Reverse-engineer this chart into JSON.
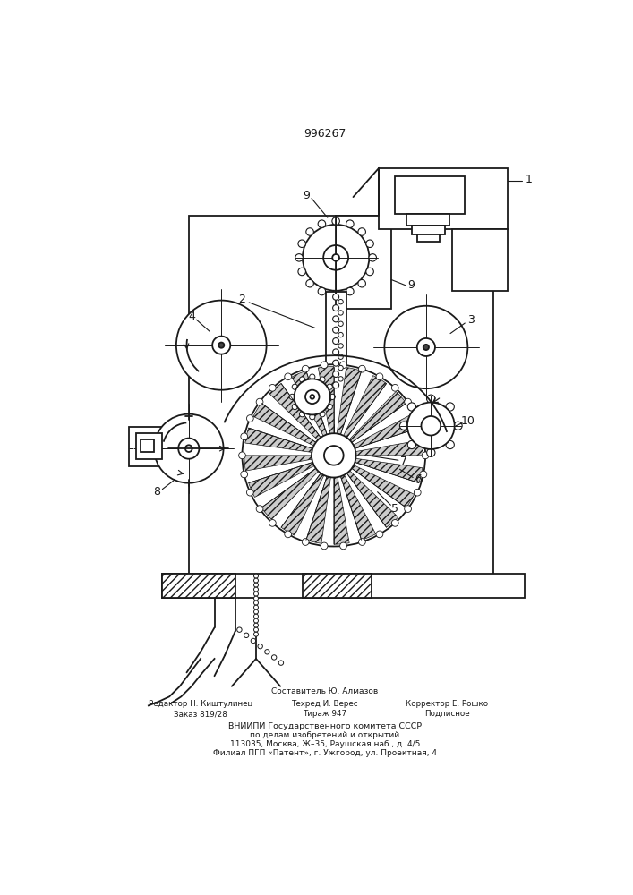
{
  "title": "996267",
  "line_color": "#1a1a1a",
  "footer_lines": [
    "Составитель Ю. Алмазов",
    "Редактор Н. Киштулинец    Техред И. Верес         Корректор Е. Рошко",
    "Заказ 819/28                     Тираж 947                  Подписное",
    "ВНИИПИ Государственного комитета СССР",
    "по делам изобретений и открытий",
    "113035, Москва, Ж–35, Раушская наб., д. 4/5",
    "Филиал ПГП «Патент», г. Ужгород, ул. Проектная, 4"
  ]
}
